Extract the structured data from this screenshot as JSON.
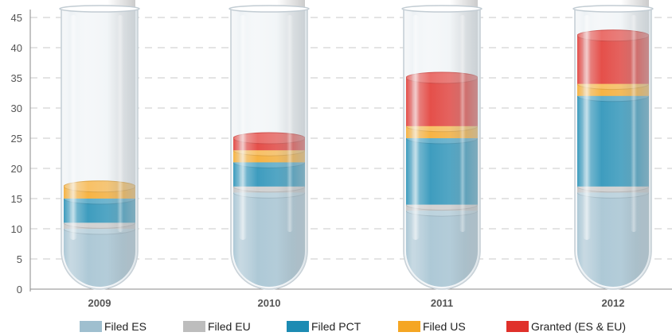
{
  "chart_data": {
    "type": "bar",
    "stacked": true,
    "style": "test-tube",
    "categories": [
      "2009",
      "2010",
      "2011",
      "2012"
    ],
    "series": [
      {
        "name": "Filed ES",
        "color": "#9fbfcf",
        "values": [
          10,
          16,
          13,
          16
        ]
      },
      {
        "name": "Filed EU",
        "color": "#bdbdbd",
        "values": [
          1,
          1,
          1,
          1
        ]
      },
      {
        "name": "Filed PCT",
        "color": "#1c8bb3",
        "values": [
          4,
          4,
          11,
          15
        ]
      },
      {
        "name": "Filed US",
        "color": "#f5a623",
        "values": [
          2,
          2,
          2,
          2
        ]
      },
      {
        "name": "Granted (ES & EU)",
        "color": "#e0302a",
        "values": [
          0,
          2,
          8,
          8
        ]
      }
    ],
    "yticks": [
      "0",
      "5",
      "10",
      "15",
      "20",
      "25",
      "30",
      "35",
      "40",
      "45"
    ],
    "ylim": [
      0,
      45
    ],
    "grid": true,
    "legend_position": "bottom"
  }
}
